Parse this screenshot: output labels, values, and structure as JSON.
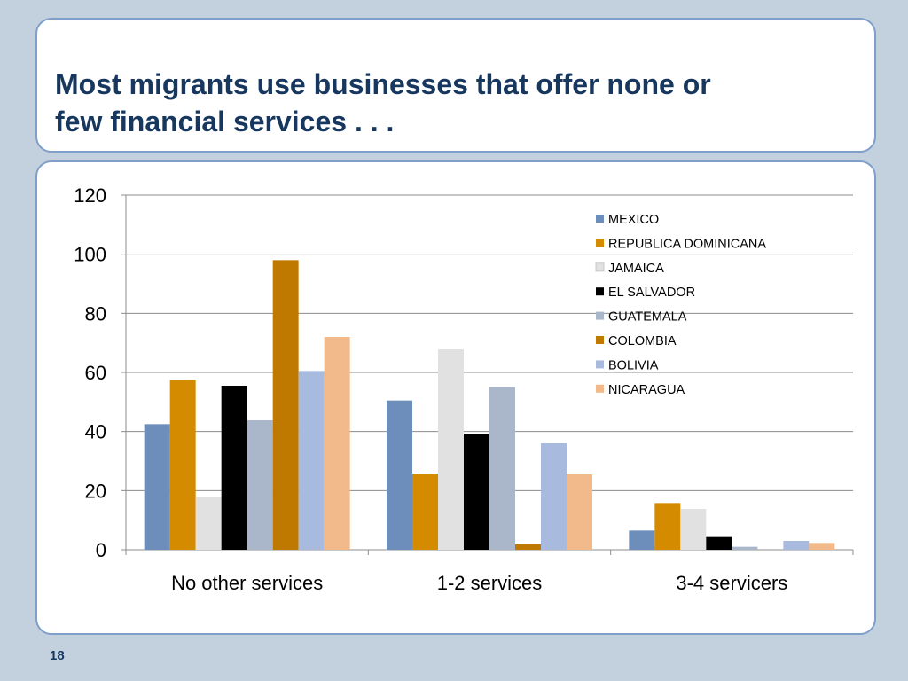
{
  "slide": {
    "title_line1": "Most migrants use businesses that offer none or",
    "title_line2": "few financial services . . .",
    "page_number": "18"
  },
  "colors": {
    "background": "#c3d1df",
    "panel_border": "#7f9fc8",
    "title_text": "#17375e"
  },
  "chart_data": {
    "type": "bar",
    "title": "",
    "xlabel": "",
    "ylabel": "",
    "ylim": [
      0,
      120
    ],
    "yticks": [
      0,
      20,
      40,
      60,
      80,
      100,
      120
    ],
    "grid": true,
    "legend_position": "top-right",
    "categories": [
      "No other services",
      "1-2 services",
      "3-4 servicers"
    ],
    "series": [
      {
        "name": "MEXICO",
        "color": "#6d8ebb",
        "values": [
          42.5,
          50.5,
          6.5
        ]
      },
      {
        "name": "REPUBLICA DOMINICANA",
        "color": "#d58b00",
        "values": [
          57.5,
          25.8,
          15.8
        ]
      },
      {
        "name": "JAMAICA",
        "color": "#e1e1e1",
        "values": [
          18,
          67.8,
          13.8
        ]
      },
      {
        "name": "EL SALVADOR",
        "color": "#000000",
        "values": [
          55.5,
          39.3,
          4.3
        ]
      },
      {
        "name": "GUATEMALA",
        "color": "#aab6ca",
        "values": [
          43.8,
          55,
          1
        ]
      },
      {
        "name": "COLOMBIA",
        "color": "#bf7900",
        "values": [
          98,
          1.8,
          0
        ]
      },
      {
        "name": "BOLIVIA",
        "color": "#a9badf",
        "values": [
          60.5,
          36,
          3
        ]
      },
      {
        "name": "NICARAGUA",
        "color": "#f2b98a",
        "values": [
          72,
          25.5,
          2.3
        ]
      }
    ]
  }
}
